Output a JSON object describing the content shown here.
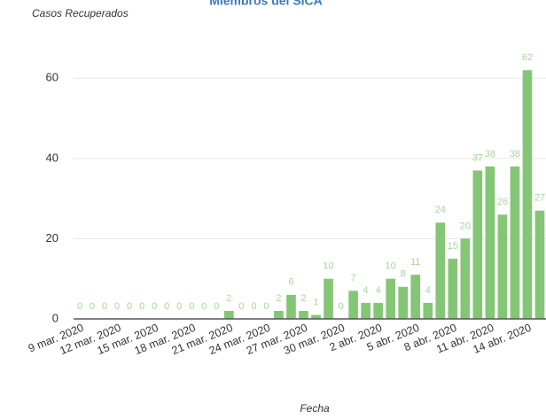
{
  "chart_data": {
    "type": "bar",
    "title": "Miembros del SICA",
    "y_label": "Casos Recuperados",
    "x_label": "Fecha",
    "categories": [
      "9 mar. 2020",
      null,
      null,
      "12 mar. 2020",
      null,
      null,
      "15 mar. 2020",
      null,
      null,
      "18 mar. 2020",
      null,
      null,
      "21 mar. 2020",
      null,
      null,
      "24 mar. 2020",
      null,
      null,
      "27 mar. 2020",
      null,
      null,
      "30 mar. 2020",
      null,
      null,
      "2 abr. 2020",
      null,
      null,
      "5 abr. 2020",
      null,
      null,
      "8 abr. 2020",
      null,
      null,
      "11 abr. 2020",
      null,
      null,
      "14 abr. 2020",
      null
    ],
    "values": [
      0,
      0,
      0,
      0,
      0,
      0,
      0,
      0,
      0,
      0,
      0,
      0,
      2,
      0,
      0,
      0,
      2,
      6,
      2,
      1,
      10,
      0,
      7,
      4,
      4,
      10,
      8,
      11,
      4,
      24,
      15,
      20,
      37,
      38,
      26,
      38,
      62,
      27
    ],
    "color": "#84c675",
    "label_color": "#a6d898",
    "ylim": [
      0,
      70
    ],
    "yticks": [
      0,
      20,
      40,
      60
    ],
    "grid": true
  }
}
